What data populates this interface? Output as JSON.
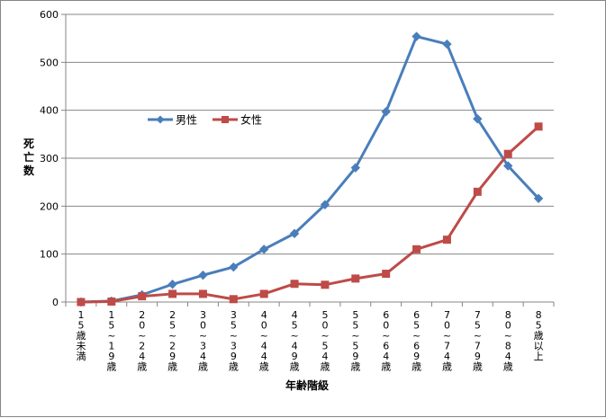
{
  "chart_data": {
    "type": "line",
    "title": "",
    "xlabel": "年齢階級",
    "ylabel": "死亡数",
    "ylim": [
      0,
      600
    ],
    "yticks": [
      0,
      100,
      200,
      300,
      400,
      500,
      600
    ],
    "grid": true,
    "legend_position": "left-middle",
    "categories": [
      "15歳未満",
      "15~19歳",
      "20~24歳",
      "25~29歳",
      "30~34歳",
      "35~39歳",
      "40~44歳",
      "45~49歳",
      "50~54歳",
      "55~59歳",
      "60~64歳",
      "65~69歳",
      "70~74歳",
      "75~79歳",
      "80~84歳",
      "85歳以上"
    ],
    "series": [
      {
        "name": "男性",
        "color": "#4A7EBB",
        "marker": "diamond",
        "values": [
          0,
          2,
          15,
          37,
          56,
          73,
          110,
          143,
          203,
          280,
          397,
          554,
          538,
          382,
          284,
          216
        ]
      },
      {
        "name": "女性",
        "color": "#BE4B48",
        "marker": "square",
        "values": [
          0,
          1,
          12,
          17,
          17,
          6,
          17,
          38,
          36,
          49,
          59,
          110,
          130,
          230,
          309,
          366
        ]
      }
    ]
  }
}
